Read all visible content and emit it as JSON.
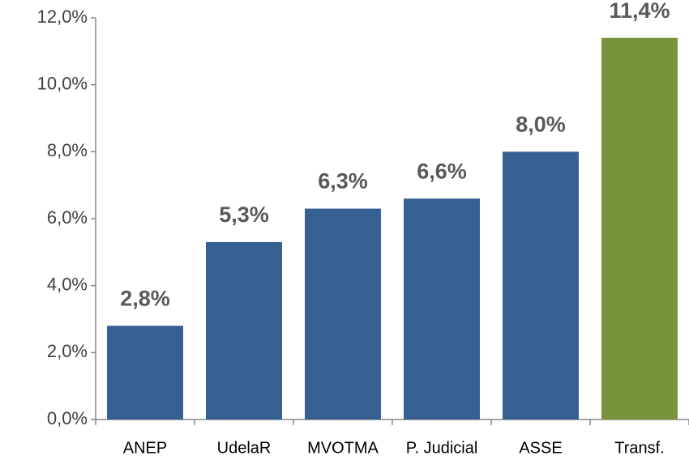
{
  "chart_data": {
    "type": "bar",
    "categories": [
      "ANEP",
      "UdelaR",
      "MVOTMA",
      "P. Judicial",
      "ASSE",
      "Transf."
    ],
    "values": [
      2.8,
      5.3,
      6.3,
      6.6,
      8.0,
      11.4
    ],
    "value_labels": [
      "2,8%",
      "5,3%",
      "6,3%",
      "6,6%",
      "8,0%",
      "11,4%"
    ],
    "colors": [
      "#366092",
      "#366092",
      "#366092",
      "#366092",
      "#366092",
      "#77933c"
    ],
    "ylim": [
      0,
      12
    ],
    "yticks": [
      {
        "value": 0,
        "label": "0,0%"
      },
      {
        "value": 2,
        "label": "2,0%"
      },
      {
        "value": 4,
        "label": "4,0%"
      },
      {
        "value": 6,
        "label": "6,0%"
      },
      {
        "value": 8,
        "label": "8,0%"
      },
      {
        "value": 10,
        "label": "10,0%"
      },
      {
        "value": 12,
        "label": "12,0%"
      }
    ],
    "grid": false
  }
}
